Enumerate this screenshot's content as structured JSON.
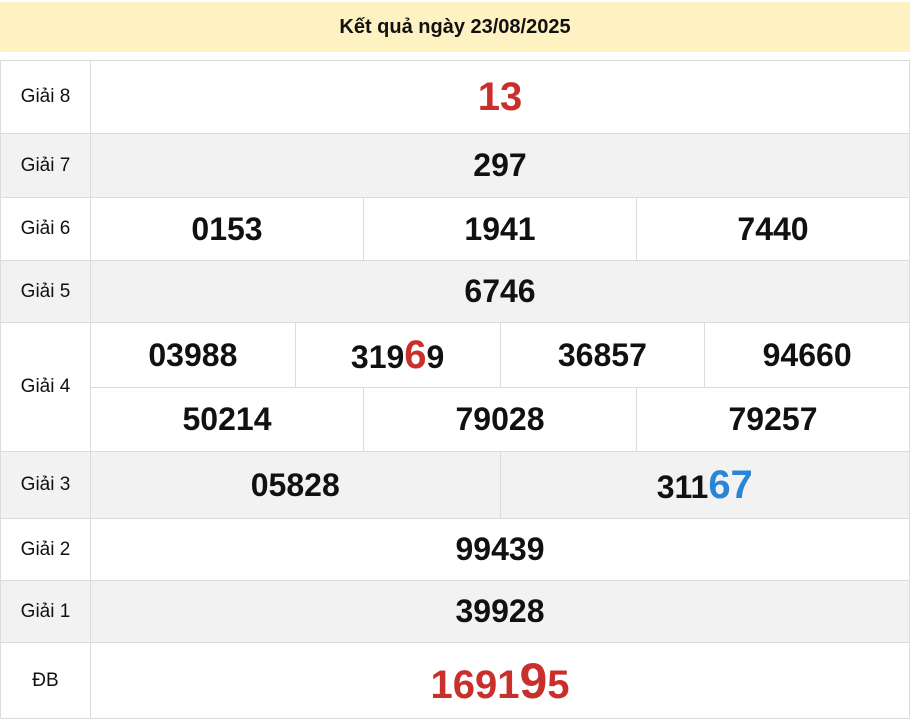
{
  "header": {
    "title": "Kết quả ngày 23/08/2025"
  },
  "colors": {
    "header_bg": "#fff2c2",
    "red": "#c9302c",
    "blue": "#2b85d6",
    "alt_row": "#f2f2f2"
  },
  "prizes": {
    "g8": {
      "label": "Giải 8",
      "numbers": [
        {
          "main": "13",
          "hl": ""
        }
      ]
    },
    "g7": {
      "label": "Giải 7",
      "numbers": [
        {
          "main": "297",
          "hl": ""
        }
      ]
    },
    "g6": {
      "label": "Giải 6",
      "numbers": [
        {
          "main": "0153",
          "hl": ""
        },
        {
          "main": "1941",
          "hl": ""
        },
        {
          "main": "7440",
          "hl": ""
        }
      ]
    },
    "g5": {
      "label": "Giải 5",
      "numbers": [
        {
          "main": "6746",
          "hl": ""
        }
      ]
    },
    "g4": {
      "label": "Giải 4",
      "numbers": [
        {
          "main": "03988",
          "hl": ""
        },
        {
          "main": "319",
          "hl": "6",
          "tail": "9"
        },
        {
          "main": "36857",
          "hl": ""
        },
        {
          "main": "94660",
          "hl": ""
        },
        {
          "main": "50214",
          "hl": ""
        },
        {
          "main": "79028",
          "hl": ""
        },
        {
          "main": "79257",
          "hl": ""
        }
      ]
    },
    "g3": {
      "label": "Giải 3",
      "numbers": [
        {
          "main": "05828",
          "hl": ""
        },
        {
          "main": "311",
          "hl": "67"
        }
      ]
    },
    "g2": {
      "label": "Giải 2",
      "numbers": [
        {
          "main": "99439",
          "hl": ""
        }
      ]
    },
    "g1": {
      "label": "Giải 1",
      "numbers": [
        {
          "main": "39928",
          "hl": ""
        }
      ]
    },
    "db": {
      "label": "ĐB",
      "numbers": [
        {
          "main": "1691",
          "hl": "9",
          "tail": "5"
        }
      ]
    }
  }
}
